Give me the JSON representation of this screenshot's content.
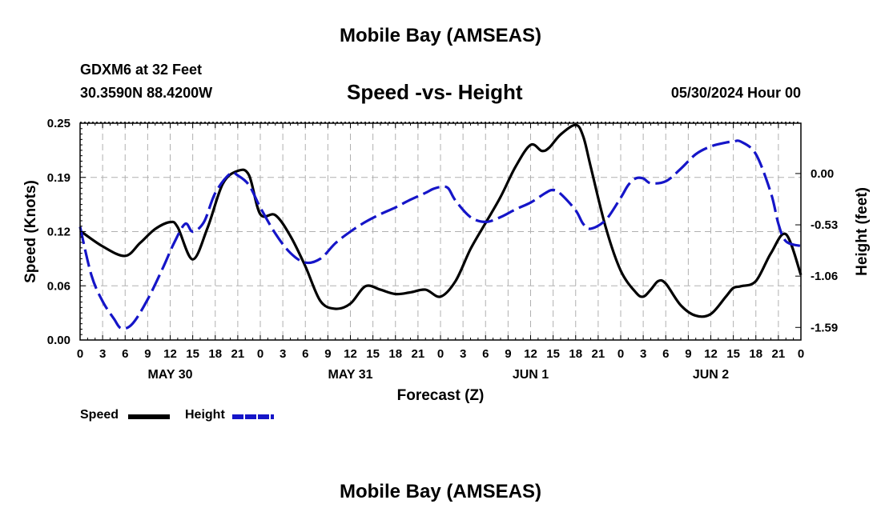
{
  "header": {
    "title": "Mobile Bay (AMSEAS)",
    "station": "GDXM6 at 32 Feet",
    "coords": "30.3590N  88.4200W",
    "plot_title": "Speed -vs- Height",
    "datetime": "05/30/2024 Hour 00"
  },
  "footer": {
    "title": "Mobile Bay (AMSEAS)"
  },
  "legend": {
    "speed_label": "Speed",
    "height_label": "Height",
    "speed_color": "#000000",
    "height_color": "#1515c8"
  },
  "chart_data": {
    "type": "line",
    "title": "Speed -vs- Height",
    "xlabel": "Forecast (Z)",
    "ylabel_left": "Speed (Knots)",
    "ylabel_right": "Height (feet)",
    "x_ticks": [
      "0",
      "3",
      "6",
      "9",
      "12",
      "15",
      "18",
      "21",
      "0",
      "3",
      "6",
      "9",
      "12",
      "15",
      "18",
      "21",
      "0",
      "3",
      "6",
      "9",
      "12",
      "15",
      "18",
      "21",
      "0",
      "3",
      "6",
      "9",
      "12",
      "15",
      "18",
      "21",
      "0"
    ],
    "day_labels": [
      {
        "label": "MAY 30",
        "hour": 12
      },
      {
        "label": "MAY 31",
        "hour": 36
      },
      {
        "label": "JUN 1",
        "hour": 60
      },
      {
        "label": "JUN 2",
        "hour": 84
      }
    ],
    "x_range": [
      0,
      96
    ],
    "ylim_left": [
      0,
      0.25
    ],
    "left_ticks": [
      "0.00",
      "0.06",
      "0.12",
      "0.19",
      "0.25"
    ],
    "left_tick_values": [
      0,
      0.0625,
      0.125,
      0.1875,
      0.25
    ],
    "ylim_right": [
      -1.72,
      0.52
    ],
    "right_ticks": [
      "0.00",
      "-0.53",
      "-1.06",
      "-1.59"
    ],
    "right_tick_values": [
      0,
      -0.53,
      -1.06,
      -1.59
    ],
    "grid": true,
    "legend_position": "bottom-left",
    "series": [
      {
        "name": "Speed",
        "axis": "left",
        "color": "#000000",
        "style": "solid",
        "x": [
          0,
          3,
          6,
          8,
          10,
          12,
          13,
          15,
          17,
          19,
          21,
          22.5,
          24,
          26,
          28,
          30,
          32,
          34,
          36,
          38,
          40,
          42,
          44,
          46,
          48,
          50,
          52,
          54,
          56,
          58,
          60,
          61.5,
          62.5,
          64,
          66,
          67,
          68,
          70,
          72,
          74,
          75,
          76,
          77,
          78,
          80,
          82,
          84,
          86,
          87,
          88,
          90,
          92,
          94,
          96
        ],
        "y": [
          0.126,
          0.108,
          0.097,
          0.112,
          0.128,
          0.136,
          0.13,
          0.093,
          0.13,
          0.18,
          0.195,
          0.19,
          0.145,
          0.144,
          0.12,
          0.085,
          0.045,
          0.036,
          0.042,
          0.062,
          0.058,
          0.053,
          0.055,
          0.058,
          0.05,
          0.068,
          0.105,
          0.135,
          0.165,
          0.2,
          0.225,
          0.218,
          0.222,
          0.237,
          0.248,
          0.235,
          0.2,
          0.13,
          0.08,
          0.055,
          0.05,
          0.058,
          0.068,
          0.065,
          0.04,
          0.028,
          0.03,
          0.05,
          0.06,
          0.062,
          0.068,
          0.1,
          0.122,
          0.075
        ]
      },
      {
        "name": "Height",
        "axis": "right",
        "color": "#1515c8",
        "style": "dashed",
        "x": [
          0,
          1.5,
          3,
          4.5,
          5.5,
          7,
          9,
          11,
          12.5,
          14,
          15,
          16.5,
          18,
          20,
          21,
          22.5,
          24,
          26,
          28,
          30,
          32,
          34,
          36,
          38,
          40,
          42,
          44,
          46,
          47,
          48,
          49,
          50,
          52,
          54,
          56,
          58,
          60,
          62,
          63,
          64,
          66,
          67,
          68,
          70,
          72,
          73,
          74,
          75,
          76,
          78,
          80,
          82,
          84,
          86,
          87,
          88,
          90,
          92,
          93,
          94,
          96
        ],
        "y": [
          -0.55,
          -1.05,
          -1.32,
          -1.5,
          -1.6,
          -1.55,
          -1.3,
          -0.98,
          -0.72,
          -0.52,
          -0.6,
          -0.5,
          -0.2,
          0.0,
          -0.02,
          -0.12,
          -0.35,
          -0.62,
          -0.82,
          -0.92,
          -0.88,
          -0.72,
          -0.6,
          -0.5,
          -0.42,
          -0.35,
          -0.27,
          -0.2,
          -0.16,
          -0.14,
          -0.15,
          -0.28,
          -0.45,
          -0.5,
          -0.45,
          -0.37,
          -0.3,
          -0.2,
          -0.17,
          -0.21,
          -0.38,
          -0.52,
          -0.57,
          -0.48,
          -0.25,
          -0.12,
          -0.05,
          -0.05,
          -0.1,
          -0.08,
          0.05,
          0.2,
          0.28,
          0.32,
          0.33,
          0.33,
          0.2,
          -0.2,
          -0.52,
          -0.7,
          -0.75
        ]
      }
    ]
  }
}
